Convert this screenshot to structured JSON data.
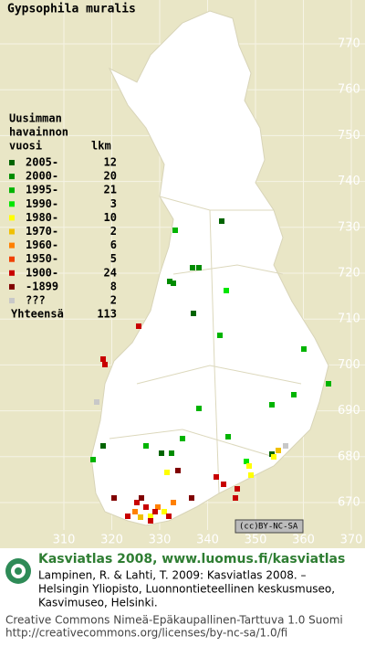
{
  "title": "Gypsophila muralis",
  "legend": {
    "heading": [
      "Uusimman",
      "havainnon"
    ],
    "col_year": "vuosi",
    "col_count": "lkm",
    "rows": [
      {
        "label": "2005-",
        "count": "12",
        "color": "#006400"
      },
      {
        "label": "2000-",
        "count": "20",
        "color": "#008c00"
      },
      {
        "label": "1995-",
        "count": "21",
        "color": "#00b400"
      },
      {
        "label": "1990-",
        "count": "3",
        "color": "#00e600"
      },
      {
        "label": "1980-",
        "count": "10",
        "color": "#ffff00"
      },
      {
        "label": "1970-",
        "count": "2",
        "color": "#f0c000"
      },
      {
        "label": "1960-",
        "count": "6",
        "color": "#ff8000"
      },
      {
        "label": "1950-",
        "count": "5",
        "color": "#f04000"
      },
      {
        "label": "1900-",
        "count": "24",
        "color": "#c80000"
      },
      {
        "label": "-1899",
        "count": "8",
        "color": "#800000"
      },
      {
        "label": "???",
        "count": "2",
        "color": "#c8c8c8"
      }
    ],
    "total_label": "Yhteensä",
    "total": "113"
  },
  "map": {
    "x_labels": [
      "310",
      "320",
      "330",
      "340",
      "350",
      "360",
      "370"
    ],
    "y_labels": [
      "770",
      "760",
      "750",
      "740",
      "730",
      "720",
      "710",
      "700",
      "690",
      "680",
      "670"
    ],
    "license_badge": "BY-NC-SA"
  },
  "footer": {
    "heading": "Kasviatlas 2008, www.luomus.fi/kasviatlas",
    "citation": [
      "Lampinen, R. & Lahti, T. 2009: Kasviatlas 2008. –",
      "Helsingin Yliopisto, Luonnontieteellinen keskusmuseo,",
      "Kasvimuseo, Helsinki."
    ],
    "license": [
      "Creative Commons Nimeä-Epäkaupallinen-Tarttuva 1.0 Suomi",
      "http://creativecommons.org/licenses/by-nc-sa/1.0/fi"
    ]
  }
}
